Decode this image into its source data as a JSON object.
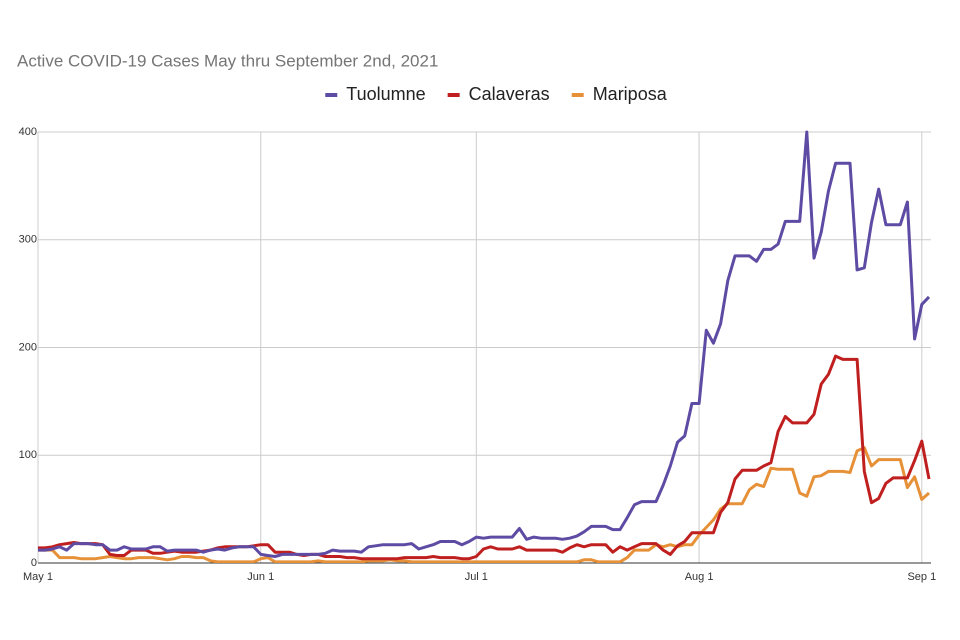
{
  "chart_data": {
    "type": "line",
    "title": "Active COVID-19 Cases May thru September 2nd, 2021",
    "x": [
      0,
      1,
      2,
      3,
      4,
      5,
      6,
      7,
      8,
      9,
      10,
      11,
      12,
      13,
      14,
      15,
      16,
      17,
      18,
      19,
      20,
      21,
      22,
      23,
      24,
      25,
      26,
      27,
      28,
      29,
      30,
      31,
      32,
      33,
      34,
      35,
      36,
      37,
      38,
      39,
      40,
      41,
      42,
      43,
      44,
      45,
      46,
      47,
      48,
      49,
      50,
      51,
      52,
      53,
      54,
      55,
      56,
      57,
      58,
      59,
      60,
      61,
      62,
      63,
      64,
      65,
      66,
      67,
      68,
      69,
      70,
      71,
      72,
      73,
      74,
      75,
      76,
      77,
      78,
      79,
      80,
      81,
      82,
      83,
      84,
      85,
      86,
      87,
      88,
      89,
      90,
      91,
      92,
      93,
      94,
      95,
      96,
      97,
      98,
      99,
      100,
      101,
      102,
      103,
      104,
      105,
      106,
      107,
      108,
      109,
      110,
      111,
      112,
      113,
      114,
      115,
      116,
      117,
      118,
      119,
      120,
      121,
      122,
      123,
      124
    ],
    "series": [
      {
        "name": "Tuolumne",
        "color": "#5e4ba3",
        "values": [
          12,
          12,
          13,
          15,
          12,
          18,
          18,
          18,
          17,
          17,
          12,
          12,
          15,
          13,
          13,
          13,
          15,
          15,
          11,
          12,
          12,
          12,
          12,
          10,
          12,
          13,
          12,
          14,
          15,
          15,
          15,
          8,
          7,
          6,
          8,
          8,
          8,
          8,
          8,
          8,
          9,
          12,
          11,
          11,
          11,
          10,
          15,
          16,
          17,
          17,
          17,
          17,
          18,
          13,
          15,
          17,
          20,
          20,
          20,
          17,
          20,
          24,
          23,
          24,
          24,
          24,
          24,
          32,
          22,
          24,
          23,
          23,
          23,
          22,
          23,
          25,
          29,
          34,
          34,
          34,
          31,
          31,
          42,
          54,
          57,
          57,
          57,
          72,
          90,
          112,
          118,
          148,
          148,
          216,
          204,
          222,
          262,
          285,
          285,
          285,
          280,
          291,
          291,
          296,
          317,
          317,
          317,
          400,
          283,
          307,
          345,
          371,
          371,
          371,
          272,
          274,
          316,
          347,
          314,
          314,
          314,
          335,
          208,
          240,
          247
        ]
      },
      {
        "name": "Calaveras",
        "color": "#c01f1f",
        "values": [
          14,
          14,
          15,
          17,
          18,
          19,
          18,
          18,
          18,
          17,
          8,
          7,
          7,
          12,
          12,
          12,
          9,
          9,
          10,
          11,
          10,
          10,
          10,
          11,
          12,
          14,
          15,
          15,
          15,
          15,
          16,
          17,
          17,
          10,
          10,
          10,
          8,
          7,
          8,
          8,
          6,
          6,
          6,
          5,
          5,
          4,
          4,
          4,
          4,
          4,
          4,
          5,
          5,
          5,
          5,
          6,
          5,
          5,
          5,
          4,
          4,
          6,
          13,
          15,
          13,
          13,
          13,
          15,
          12,
          12,
          12,
          12,
          12,
          10,
          14,
          17,
          15,
          17,
          17,
          17,
          10,
          15,
          12,
          15,
          18,
          18,
          18,
          12,
          8,
          16,
          20,
          28,
          28,
          28,
          28,
          47,
          56,
          78,
          86,
          86,
          86,
          90,
          93,
          122,
          136,
          130,
          130,
          130,
          138,
          166,
          175,
          192,
          189,
          189,
          189,
          85,
          56,
          60,
          74,
          79,
          79,
          79,
          95,
          113,
          78
        ]
      },
      {
        "name": "Mariposa",
        "color": "#e69138",
        "values": [
          12,
          12,
          12,
          5,
          5,
          5,
          4,
          4,
          4,
          5,
          6,
          5,
          4,
          4,
          5,
          5,
          5,
          4,
          3,
          4,
          6,
          6,
          5,
          5,
          2,
          1,
          1,
          1,
          1,
          1,
          1,
          4,
          5,
          1,
          1,
          1,
          1,
          1,
          1,
          2,
          1,
          1,
          1,
          1,
          1,
          1,
          2,
          2,
          2,
          3,
          2,
          2,
          1,
          1,
          1,
          1,
          1,
          1,
          1,
          1,
          1,
          1,
          1,
          1,
          1,
          1,
          1,
          1,
          1,
          1,
          1,
          1,
          1,
          1,
          1,
          1,
          3,
          3,
          1,
          1,
          1,
          1,
          5,
          12,
          12,
          12,
          17,
          15,
          17,
          15,
          17,
          17,
          26,
          33,
          40,
          50,
          55,
          55,
          55,
          68,
          73,
          71,
          88,
          87,
          87,
          87,
          65,
          62,
          80,
          81,
          85,
          85,
          85,
          84,
          104,
          107,
          90,
          96,
          96,
          96,
          96,
          70,
          80,
          59,
          65
        ]
      }
    ],
    "xlim": [
      0,
      124
    ],
    "xticks": [
      {
        "value": 0,
        "label": "May 1"
      },
      {
        "value": 31,
        "label": "Jun 1"
      },
      {
        "value": 61,
        "label": "Jul 1"
      },
      {
        "value": 92,
        "label": "Aug 1"
      },
      {
        "value": 123,
        "label": "Sep 1"
      }
    ],
    "ylim": [
      0,
      400
    ],
    "yticks": [
      0,
      100,
      200,
      300,
      400
    ],
    "grid": true,
    "legend": "top"
  }
}
